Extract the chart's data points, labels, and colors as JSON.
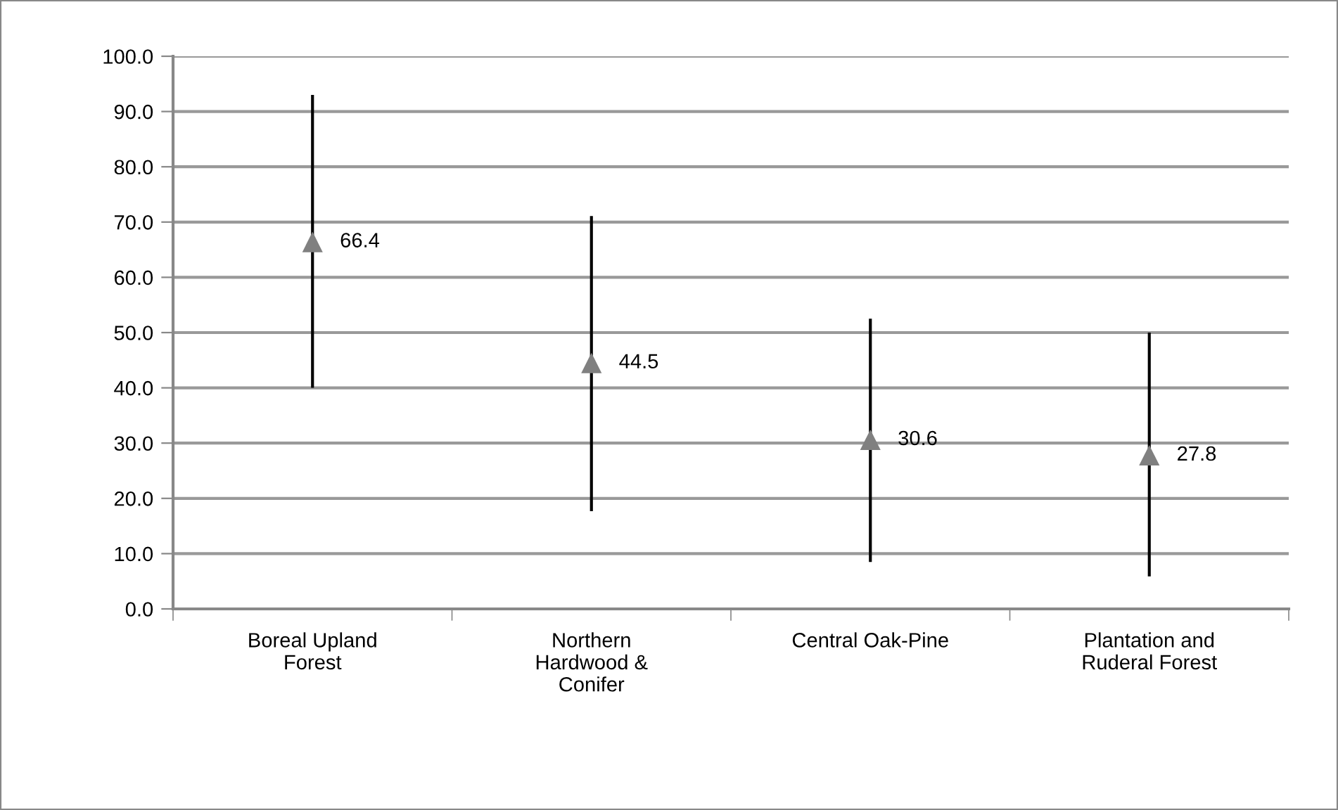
{
  "chart_data": {
    "type": "scatter",
    "categories": [
      "Boreal Upland Forest",
      "Northern Hardwood & Conifer",
      "Central Oak-Pine",
      "Plantation and Ruderal Forest"
    ],
    "values": [
      66.4,
      44.5,
      30.6,
      27.8
    ],
    "errors": [
      [
        40.0,
        93.0
      ],
      [
        17.7,
        71.1
      ],
      [
        8.5,
        52.5
      ],
      [
        5.9,
        50.0
      ]
    ],
    "color": "#808080",
    "marker": "triangle",
    "data_labels": true,
    "ylim": [
      0,
      100
    ],
    "yticks": [
      {
        "value": 0,
        "label": "0.0"
      },
      {
        "value": 10,
        "label": "10.0"
      },
      {
        "value": 20,
        "label": "20.0"
      },
      {
        "value": 30,
        "label": "30.0"
      },
      {
        "value": 40,
        "label": "40.0"
      },
      {
        "value": 50,
        "label": "50.0"
      },
      {
        "value": 60,
        "label": "60.0"
      },
      {
        "value": 70,
        "label": "70.0"
      },
      {
        "value": 80,
        "label": "80.0"
      },
      {
        "value": 90,
        "label": "90.0"
      },
      {
        "value": 100,
        "label": "100.0"
      }
    ],
    "grid": "y"
  }
}
